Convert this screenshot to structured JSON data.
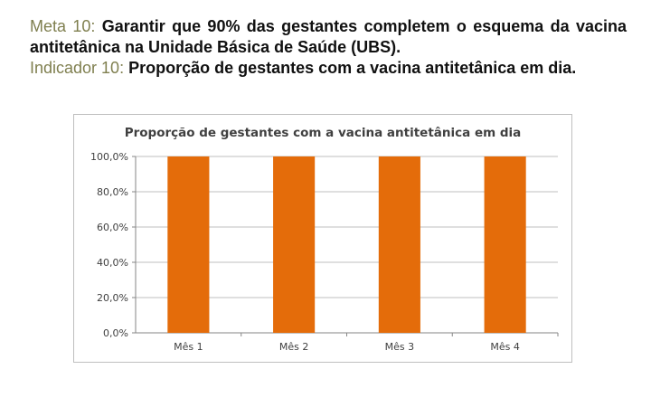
{
  "document": {
    "goal_label": "Meta 10:",
    "goal_text": "Garantir que 90% das gestantes completem o esquema da vacina antitetânica na Unidade Básica de Saúde (UBS).",
    "indicator_label": "Indicador 10:",
    "indicator_text": "Proporção de gestantes com a vacina antitetânica em dia."
  },
  "colors": {
    "bar": "#e46c0a",
    "label_accent": "#7f7f4f",
    "grid": "#bfbfbf"
  },
  "chart_data": {
    "type": "bar",
    "title": "Proporção de gestantes com a vacina antitetânica em dia",
    "categories": [
      "Mês 1",
      "Mês 2",
      "Mês 3",
      "Mês 4"
    ],
    "values": [
      100,
      100,
      100,
      100
    ],
    "ylim": [
      0,
      100
    ],
    "yticks": [
      0,
      20,
      40,
      60,
      80,
      100
    ],
    "ytick_labels": [
      "0,0%",
      "20,0%",
      "40,0%",
      "60,0%",
      "80,0%",
      "100,0%"
    ],
    "xlabel": "",
    "ylabel": "",
    "grid": "horizontal",
    "legend": "none"
  }
}
